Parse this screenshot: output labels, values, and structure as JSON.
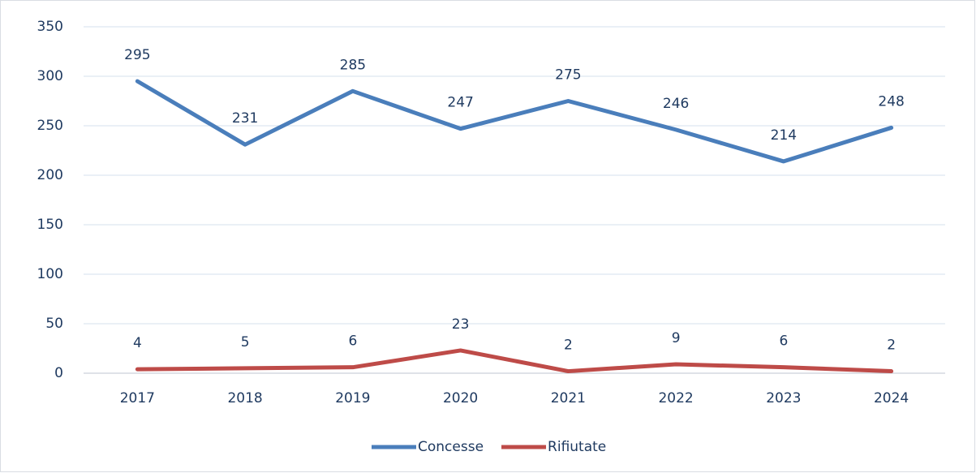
{
  "chart_data": {
    "type": "line",
    "categories": [
      "2017",
      "2018",
      "2019",
      "2020",
      "2021",
      "2022",
      "2023",
      "2024"
    ],
    "series": [
      {
        "name": "Concesse",
        "color": "#4a7ebb",
        "values": [
          295,
          231,
          285,
          247,
          275,
          246,
          214,
          248
        ]
      },
      {
        "name": "Rifiutate",
        "color": "#be4b48",
        "values": [
          4,
          5,
          6,
          23,
          2,
          9,
          6,
          2
        ]
      }
    ],
    "ylim": [
      0,
      350
    ],
    "yticks": [
      0,
      50,
      100,
      150,
      200,
      250,
      300,
      350
    ],
    "grid": true,
    "legend": "bottom"
  }
}
